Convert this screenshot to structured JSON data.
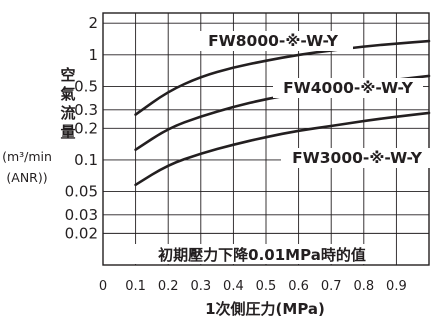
{
  "chart_data": {
    "type": "line",
    "title": "",
    "xlabel": "1次側圧力(MPa)",
    "ylabel_chars": [
      "空",
      "氣",
      "流",
      "量"
    ],
    "ylabel_unit_lines": [
      "(m³/min",
      "(ANR))"
    ],
    "x_ticks": [
      "0",
      "0.1",
      "0.2",
      "0.3",
      "0.4",
      "0.5",
      "0.6",
      "0.7",
      "0.8",
      "0.9"
    ],
    "y_ticks": [
      "2",
      "1",
      "0.5",
      "0.3",
      "0.2",
      "0.1",
      "0.05",
      "0.03",
      "0.02"
    ],
    "y_scale": "log",
    "xlim": [
      0,
      1.0
    ],
    "ylim": [
      0.01,
      2.5
    ],
    "annotation": "初期壓力下降0.01MPa時的值",
    "series": [
      {
        "name": "FW8000-※-W-Y",
        "x": [
          0.1,
          0.2,
          0.3,
          0.4,
          0.5,
          0.6,
          0.7,
          0.8,
          0.9,
          1.0
        ],
        "values": [
          0.27,
          0.45,
          0.62,
          0.76,
          0.88,
          1.0,
          1.1,
          1.2,
          1.28,
          1.35
        ]
      },
      {
        "name": "FW4000-※-W-Y",
        "x": [
          0.1,
          0.2,
          0.3,
          0.4,
          0.5,
          0.6,
          0.7,
          0.8,
          0.9,
          1.0
        ],
        "values": [
          0.125,
          0.2,
          0.26,
          0.32,
          0.38,
          0.43,
          0.48,
          0.53,
          0.58,
          0.63
        ]
      },
      {
        "name": "FW3000-※-W-Y",
        "x": [
          0.1,
          0.2,
          0.3,
          0.4,
          0.5,
          0.6,
          0.7,
          0.8,
          0.9,
          1.0
        ],
        "values": [
          0.058,
          0.09,
          0.115,
          0.14,
          0.165,
          0.19,
          0.21,
          0.235,
          0.258,
          0.28
        ]
      }
    ]
  }
}
